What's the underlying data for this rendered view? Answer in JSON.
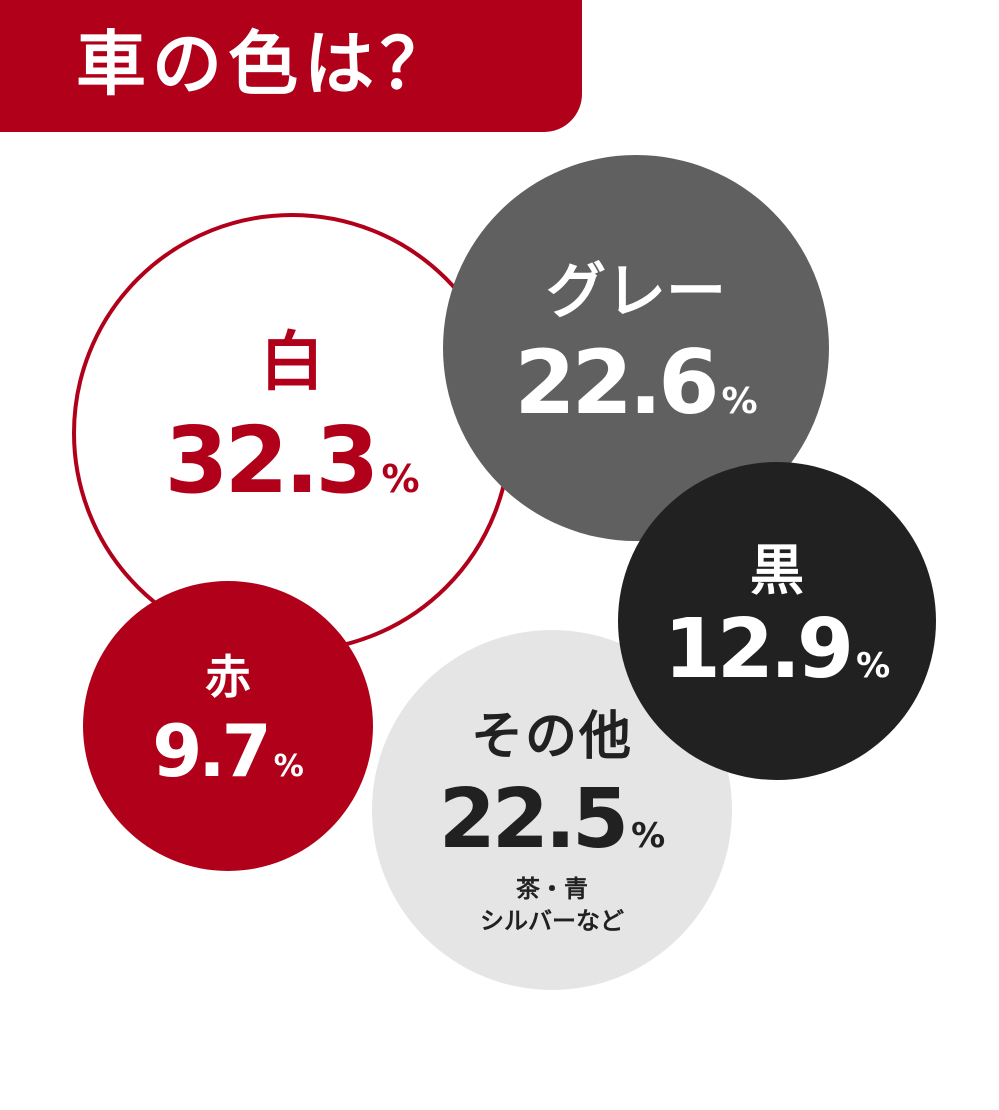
{
  "header": {
    "title": "車の色は？",
    "background_color": "#b0001a"
  },
  "chart_data": {
    "type": "bubble",
    "title": "車の色は？",
    "unit": "%",
    "series": [
      {
        "key": "white",
        "label": "白",
        "value": 32.3,
        "value_text": "32.3",
        "fill": "#ffffff",
        "stroke": "#b0001a",
        "text_color": "#b0001a"
      },
      {
        "key": "gray",
        "label": "グレー",
        "value": 22.6,
        "value_text": "22.6",
        "fill": "#606060",
        "text_color": "#ffffff"
      },
      {
        "key": "black",
        "label": "黒",
        "value": 12.9,
        "value_text": "12.9",
        "fill": "#212121",
        "text_color": "#ffffff"
      },
      {
        "key": "red",
        "label": "赤",
        "value": 9.7,
        "value_text": "9.7",
        "fill": "#b0001a",
        "text_color": "#ffffff"
      },
      {
        "key": "other",
        "label": "その他",
        "value": 22.5,
        "value_text": "22.5",
        "fill": "#e5e5e5",
        "text_color": "#212121",
        "note_lines": [
          "茶・青",
          "シルバーなど"
        ]
      }
    ]
  }
}
